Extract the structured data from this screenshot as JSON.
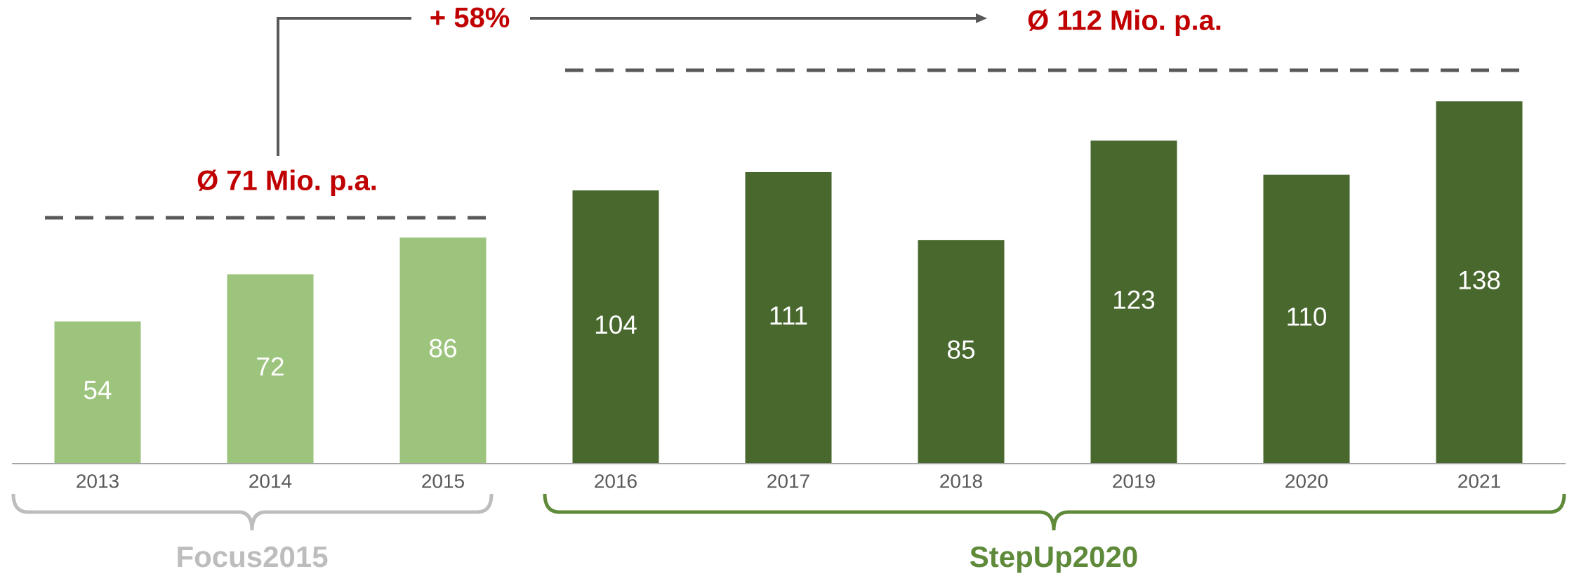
{
  "chart_data": {
    "type": "bar",
    "categories": [
      "2013",
      "2014",
      "2015",
      "2016",
      "2017",
      "2018",
      "2019",
      "2020",
      "2021"
    ],
    "values": [
      54,
      72,
      86,
      104,
      111,
      85,
      123,
      110,
      138
    ],
    "colors": [
      "#9dc47d",
      "#9dc47d",
      "#9dc47d",
      "#48682e",
      "#48682e",
      "#48682e",
      "#48682e",
      "#48682e",
      "#48682e"
    ],
    "annotations": [
      "Ø 71 Mio. p.a.",
      "+ 58%",
      "Ø 112 Mio. p.a."
    ],
    "groups": [
      {
        "label": "Focus2015",
        "color": "#bdbdbd"
      },
      {
        "label": "StepUp2020",
        "color": "#5e8a3a"
      }
    ]
  }
}
